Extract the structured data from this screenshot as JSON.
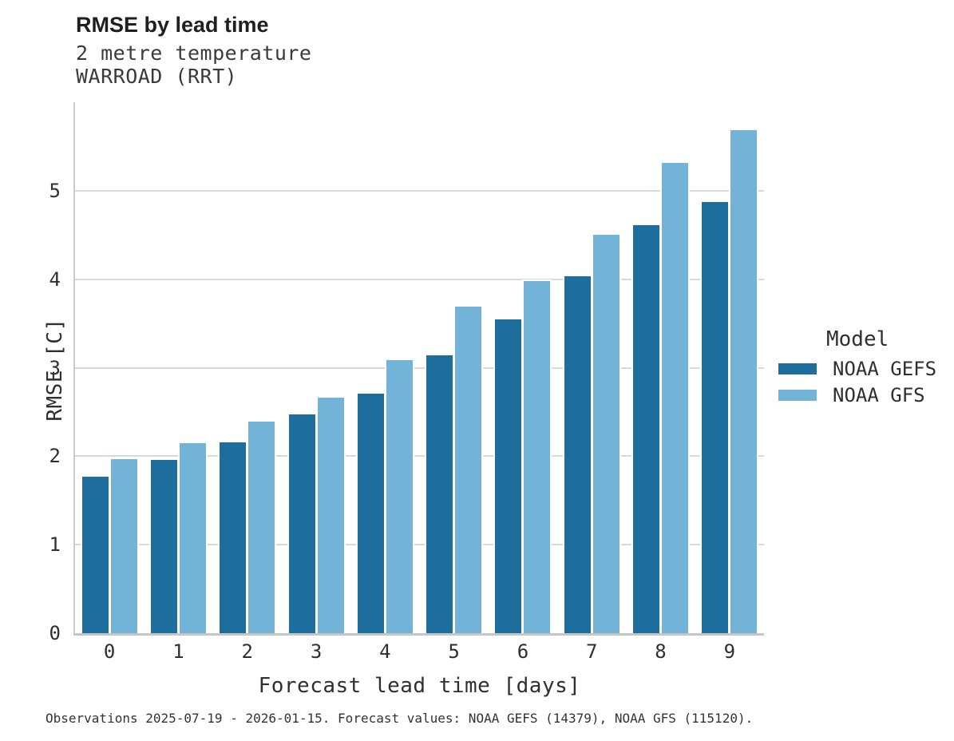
{
  "header": {
    "title": "RMSE by lead time",
    "subtitle_lines": [
      "2 metre temperature",
      "WARROAD (RRT)"
    ]
  },
  "chart_data": {
    "type": "bar",
    "title": "RMSE by lead time",
    "subtitle": "2 metre temperature WARROAD (RRT)",
    "categories": [
      "0",
      "1",
      "2",
      "3",
      "4",
      "5",
      "6",
      "7",
      "8",
      "9"
    ],
    "series": [
      {
        "name": "NOAA GEFS",
        "color": "#1d6e9c",
        "values": [
          1.77,
          1.96,
          2.16,
          2.47,
          2.71,
          3.14,
          3.55,
          4.03,
          4.61,
          4.87
        ]
      },
      {
        "name": "NOAA GFS",
        "color": "#74b3d8",
        "values": [
          1.97,
          2.15,
          2.39,
          2.66,
          3.09,
          3.69,
          3.98,
          4.5,
          5.31,
          5.68
        ]
      }
    ],
    "xlabel": "Forecast lead time [days]",
    "ylabel": "RMSE [C]",
    "ylim": [
      0,
      6
    ],
    "yticks": [
      0,
      1,
      2,
      3,
      4,
      5
    ],
    "grid": "horizontal",
    "legend_position": "right",
    "grid_color": "#d9d9d9",
    "axis_color": "#c6c6c6",
    "background": "#ffffff"
  },
  "legend": {
    "title": "Model"
  },
  "footer": {
    "note": "Observations 2025-07-19 - 2026-01-15. Forecast values: NOAA GEFS (14379), NOAA GFS (115120)."
  }
}
